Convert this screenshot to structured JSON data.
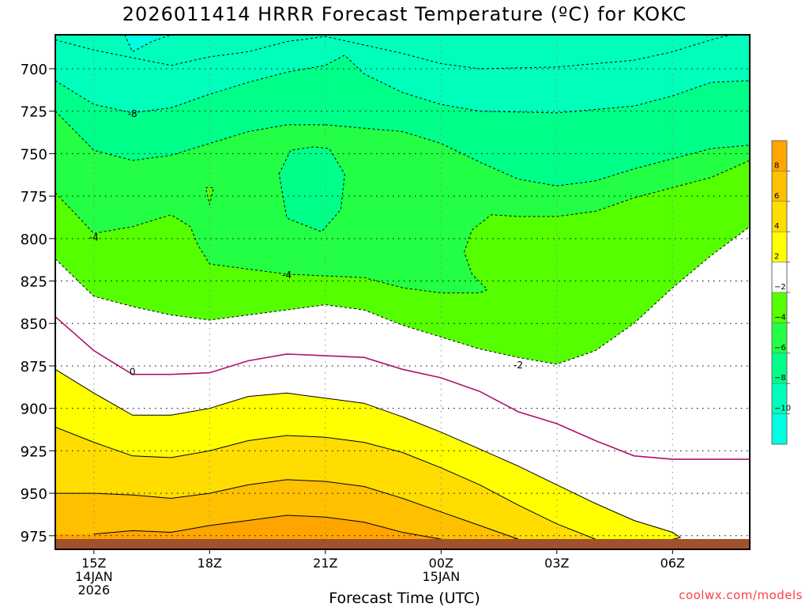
{
  "chart_data": {
    "type": "heatmap",
    "title": "2026011414 HRRR Forecast Temperature (ºC) for KOKC",
    "xlabel": "Forecast Time (UTC)",
    "ylabel": "",
    "credit": "coolwx.com/models",
    "x_ticks": [
      {
        "value": 15,
        "lines": [
          "15Z",
          "14JAN",
          "2026"
        ]
      },
      {
        "value": 18,
        "lines": [
          "18Z"
        ]
      },
      {
        "value": 21,
        "lines": [
          "21Z"
        ]
      },
      {
        "value": 24,
        "lines": [
          "00Z",
          "15JAN"
        ]
      },
      {
        "value": 27,
        "lines": [
          "03Z"
        ]
      },
      {
        "value": 30,
        "lines": [
          "06Z"
        ]
      }
    ],
    "xlim": [
      14,
      32
    ],
    "y_ticks": [
      700,
      725,
      750,
      775,
      800,
      825,
      850,
      875,
      900,
      925,
      950,
      975
    ],
    "ylim": [
      680,
      983
    ],
    "y_scale": "pressure (hPa), increasing downward",
    "colorbar": {
      "tick_labels": [
        "8",
        "6",
        "4",
        "2",
        "−2",
        "−4",
        "−6",
        "−8",
        "−10"
      ],
      "bins": [
        {
          "from": 8,
          "to": 10,
          "color": "#ffa500"
        },
        {
          "from": 6,
          "to": 8,
          "color": "#ffc000"
        },
        {
          "from": 4,
          "to": 6,
          "color": "#ffdd00"
        },
        {
          "from": 2,
          "to": 4,
          "color": "#ffff00"
        },
        {
          "from": -2,
          "to": 2,
          "color": "#ffffff"
        },
        {
          "from": -4,
          "to": -2,
          "color": "#55ff00"
        },
        {
          "from": -6,
          "to": -4,
          "color": "#22ff44"
        },
        {
          "from": -8,
          "to": -6,
          "color": "#00ff88"
        },
        {
          "from": -10,
          "to": -8,
          "color": "#00ffbb"
        },
        {
          "from": -12,
          "to": -10,
          "color": "#00ffe0"
        }
      ]
    },
    "contour_labels": [
      {
        "text": "-8",
        "x": 16.0,
        "y": 726
      },
      {
        "text": "-4",
        "x": 15.0,
        "y": 799
      },
      {
        "text": "-4",
        "x": 20.0,
        "y": 821
      },
      {
        "text": "0",
        "x": 16.0,
        "y": 878
      },
      {
        "text": "-2",
        "x": 26.0,
        "y": 874
      }
    ],
    "contours": [
      {
        "level": -10,
        "style": "dashed",
        "points": [
          [
            15.8,
            680
          ],
          [
            16.0,
            690
          ],
          [
            16.5,
            684
          ],
          [
            17.0,
            680
          ]
        ]
      },
      {
        "level": -8,
        "style": "dashed",
        "points": [
          [
            14,
            683
          ],
          [
            15,
            689
          ],
          [
            17,
            698
          ],
          [
            18,
            693
          ],
          [
            19,
            690
          ],
          [
            20,
            684
          ],
          [
            21,
            681
          ],
          [
            22,
            686
          ],
          [
            23,
            691
          ],
          [
            24,
            697
          ],
          [
            25,
            700
          ],
          [
            27,
            699
          ],
          [
            29,
            695
          ],
          [
            30,
            690
          ],
          [
            31,
            683
          ],
          [
            31.5,
            680
          ]
        ]
      },
      {
        "level": -8,
        "style": "dashed",
        "points": [
          [
            14,
            707
          ],
          [
            15,
            721
          ],
          [
            16,
            726
          ],
          [
            17,
            723
          ],
          [
            18,
            715
          ],
          [
            19,
            708
          ],
          [
            20,
            702
          ],
          [
            21,
            698
          ],
          [
            21.5,
            692
          ],
          [
            22,
            703
          ],
          [
            23,
            714
          ],
          [
            24,
            721
          ],
          [
            25,
            725
          ],
          [
            27,
            726
          ],
          [
            29,
            722
          ],
          [
            30,
            716
          ],
          [
            31,
            708
          ],
          [
            32,
            707
          ]
        ]
      },
      {
        "level": -6,
        "style": "dashed",
        "points": [
          [
            14,
            725
          ],
          [
            15,
            748
          ],
          [
            16,
            754
          ],
          [
            17,
            751
          ],
          [
            18,
            744
          ],
          [
            19,
            737
          ],
          [
            20,
            733
          ],
          [
            21,
            733
          ]
        ]
      },
      {
        "level": -6,
        "style": "dashed",
        "points": [
          [
            21,
            733
          ],
          [
            22,
            735
          ],
          [
            23,
            737
          ],
          [
            24,
            744
          ],
          [
            25,
            755
          ],
          [
            26,
            765
          ],
          [
            27,
            769
          ],
          [
            28,
            766
          ],
          [
            29,
            759
          ],
          [
            30,
            753
          ],
          [
            31,
            747
          ],
          [
            32,
            745
          ]
        ]
      },
      {
        "level": -6,
        "style": "dashed",
        "closed": true,
        "points": [
          [
            19.8,
            762
          ],
          [
            20.1,
            748
          ],
          [
            20.7,
            746
          ],
          [
            21.1,
            747
          ],
          [
            21.5,
            762
          ],
          [
            21.4,
            783
          ],
          [
            20.9,
            796
          ],
          [
            20.0,
            788
          ]
        ]
      },
      {
        "level": -4,
        "style": "dashed",
        "closed": true,
        "points": [
          [
            17.9,
            770
          ],
          [
            18.1,
            770
          ],
          [
            18.0,
            780
          ]
        ]
      },
      {
        "level": -4,
        "style": "dashed",
        "points": [
          [
            14,
            773
          ],
          [
            15,
            797
          ],
          [
            16,
            793
          ],
          [
            17,
            786
          ],
          [
            17.5,
            793
          ],
          [
            17.7,
            804
          ],
          [
            18,
            815
          ],
          [
            19,
            818
          ],
          [
            20,
            821
          ],
          [
            21,
            822
          ],
          [
            22,
            823
          ],
          [
            23,
            829
          ],
          [
            24,
            832
          ],
          [
            25.0,
            832
          ],
          [
            25.2,
            830
          ],
          [
            24.8,
            821
          ],
          [
            24.6,
            808
          ],
          [
            24.8,
            795
          ],
          [
            25.3,
            786
          ],
          [
            26,
            787
          ],
          [
            27,
            787
          ],
          [
            28,
            784
          ],
          [
            29,
            776
          ],
          [
            30,
            770
          ],
          [
            31,
            764
          ],
          [
            32,
            754
          ]
        ]
      },
      {
        "level": -2,
        "style": "dashed",
        "points": [
          [
            14,
            812
          ],
          [
            15,
            834
          ],
          [
            16,
            840
          ],
          [
            17,
            845
          ],
          [
            18,
            848
          ],
          [
            19,
            845
          ],
          [
            20,
            842
          ],
          [
            21,
            839
          ],
          [
            22,
            842
          ],
          [
            23,
            851
          ],
          [
            24,
            858
          ],
          [
            25,
            865
          ],
          [
            26,
            870
          ],
          [
            27,
            874
          ],
          [
            28,
            866
          ],
          [
            29,
            850
          ],
          [
            30,
            829
          ],
          [
            31,
            810
          ],
          [
            32,
            793
          ]
        ]
      },
      {
        "level": 0,
        "style": "solid",
        "color": "#b0106a",
        "points": [
          [
            14,
            846
          ],
          [
            15,
            866
          ],
          [
            16,
            880
          ],
          [
            17,
            880
          ],
          [
            18,
            879
          ],
          [
            19,
            872
          ],
          [
            20,
            868
          ],
          [
            21,
            869
          ],
          [
            22,
            870
          ],
          [
            23,
            877
          ],
          [
            24,
            882
          ],
          [
            25,
            890
          ],
          [
            26,
            902
          ],
          [
            27,
            909
          ],
          [
            28,
            919
          ],
          [
            29,
            928
          ],
          [
            30,
            930
          ],
          [
            31,
            930
          ],
          [
            32,
            930
          ]
        ]
      },
      {
        "level": 2,
        "style": "solid",
        "points": [
          [
            14,
            877
          ],
          [
            15,
            891
          ],
          [
            16,
            904
          ],
          [
            17,
            904
          ],
          [
            18,
            900
          ],
          [
            19,
            893
          ],
          [
            20,
            891
          ],
          [
            21,
            894
          ],
          [
            22,
            897
          ],
          [
            23,
            905
          ],
          [
            24,
            914
          ],
          [
            25,
            924
          ],
          [
            26,
            934
          ],
          [
            27,
            945
          ],
          [
            28,
            956
          ],
          [
            29,
            966
          ],
          [
            30,
            973
          ],
          [
            30.2,
            976
          ],
          [
            29.5,
            980
          ],
          [
            28,
            980
          ]
        ]
      },
      {
        "level": 4,
        "style": "solid",
        "points": [
          [
            14,
            911
          ],
          [
            15,
            920
          ],
          [
            16,
            928
          ],
          [
            17,
            929
          ],
          [
            18,
            925
          ],
          [
            19,
            919
          ],
          [
            20,
            916
          ],
          [
            21,
            917
          ],
          [
            22,
            920
          ],
          [
            23,
            926
          ],
          [
            24,
            935
          ],
          [
            25,
            945
          ],
          [
            26,
            957
          ],
          [
            27,
            968
          ],
          [
            28,
            977
          ],
          [
            27,
            979
          ]
        ]
      },
      {
        "level": 6,
        "style": "solid",
        "points": [
          [
            14,
            950
          ],
          [
            15,
            950
          ],
          [
            16,
            951
          ],
          [
            17,
            953
          ],
          [
            18,
            950
          ],
          [
            19,
            945
          ],
          [
            20,
            942
          ],
          [
            21,
            943
          ],
          [
            22,
            946
          ],
          [
            23,
            953
          ],
          [
            24,
            961
          ],
          [
            25,
            969
          ],
          [
            26,
            977
          ],
          [
            25,
            978
          ]
        ]
      },
      {
        "level": 8,
        "style": "solid",
        "points": [
          [
            15,
            974
          ],
          [
            16,
            972
          ],
          [
            17,
            973
          ],
          [
            18,
            969
          ],
          [
            19,
            966
          ],
          [
            20,
            963
          ],
          [
            21,
            964
          ],
          [
            22,
            967
          ],
          [
            23,
            973
          ],
          [
            24,
            977
          ],
          [
            23,
            978
          ]
        ]
      }
    ]
  }
}
